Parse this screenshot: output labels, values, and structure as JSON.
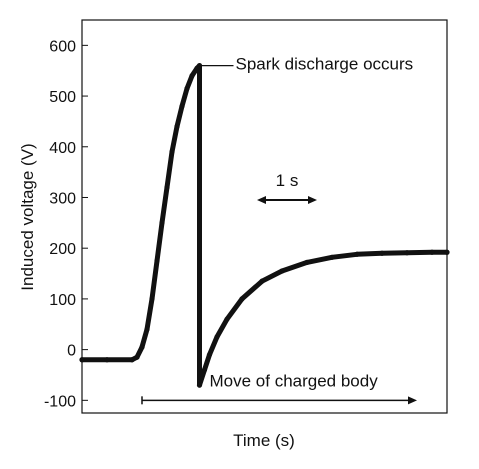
{
  "chart_data": {
    "type": "line",
    "title": "",
    "xlabel": "Time (s)",
    "ylabel": "Induced voltage (V)",
    "x_unit": "s",
    "ylim": [
      -125,
      650
    ],
    "xlim": [
      0,
      7.3
    ],
    "yticks": [
      -100,
      0,
      100,
      200,
      300,
      400,
      500,
      600
    ],
    "ytick_labels": [
      "-100",
      "0",
      "100",
      "200",
      "300",
      "400",
      "500",
      "600"
    ],
    "series": [
      {
        "x": [
          0,
          0.5,
          1.0,
          1.1,
          1.2,
          1.3,
          1.4,
          1.5,
          1.6,
          1.7,
          1.8,
          1.9,
          2.0,
          2.1,
          2.2,
          2.3,
          2.35,
          2.35,
          2.45,
          2.55,
          2.7,
          2.9,
          3.2,
          3.6,
          4.0,
          4.5,
          5.0,
          5.5,
          6.0,
          6.5,
          7.0,
          7.3
        ],
        "y": [
          -20,
          -20,
          -20,
          -15,
          5,
          40,
          100,
          175,
          250,
          320,
          390,
          440,
          480,
          515,
          540,
          555,
          560,
          -70,
          -40,
          -10,
          25,
          60,
          100,
          135,
          155,
          172,
          182,
          188,
          190,
          191,
          192,
          192
        ]
      }
    ],
    "grid": false,
    "annotations": [
      {
        "text": "Spark discharge occurs",
        "x": 2.35,
        "y": 560
      },
      {
        "text": "1 s",
        "x_start": 3.5,
        "x_end": 4.7,
        "y": 295
      },
      {
        "text": "Move of charged body",
        "x_start": 1.2,
        "x_end": 6.7,
        "y": -100
      }
    ]
  }
}
